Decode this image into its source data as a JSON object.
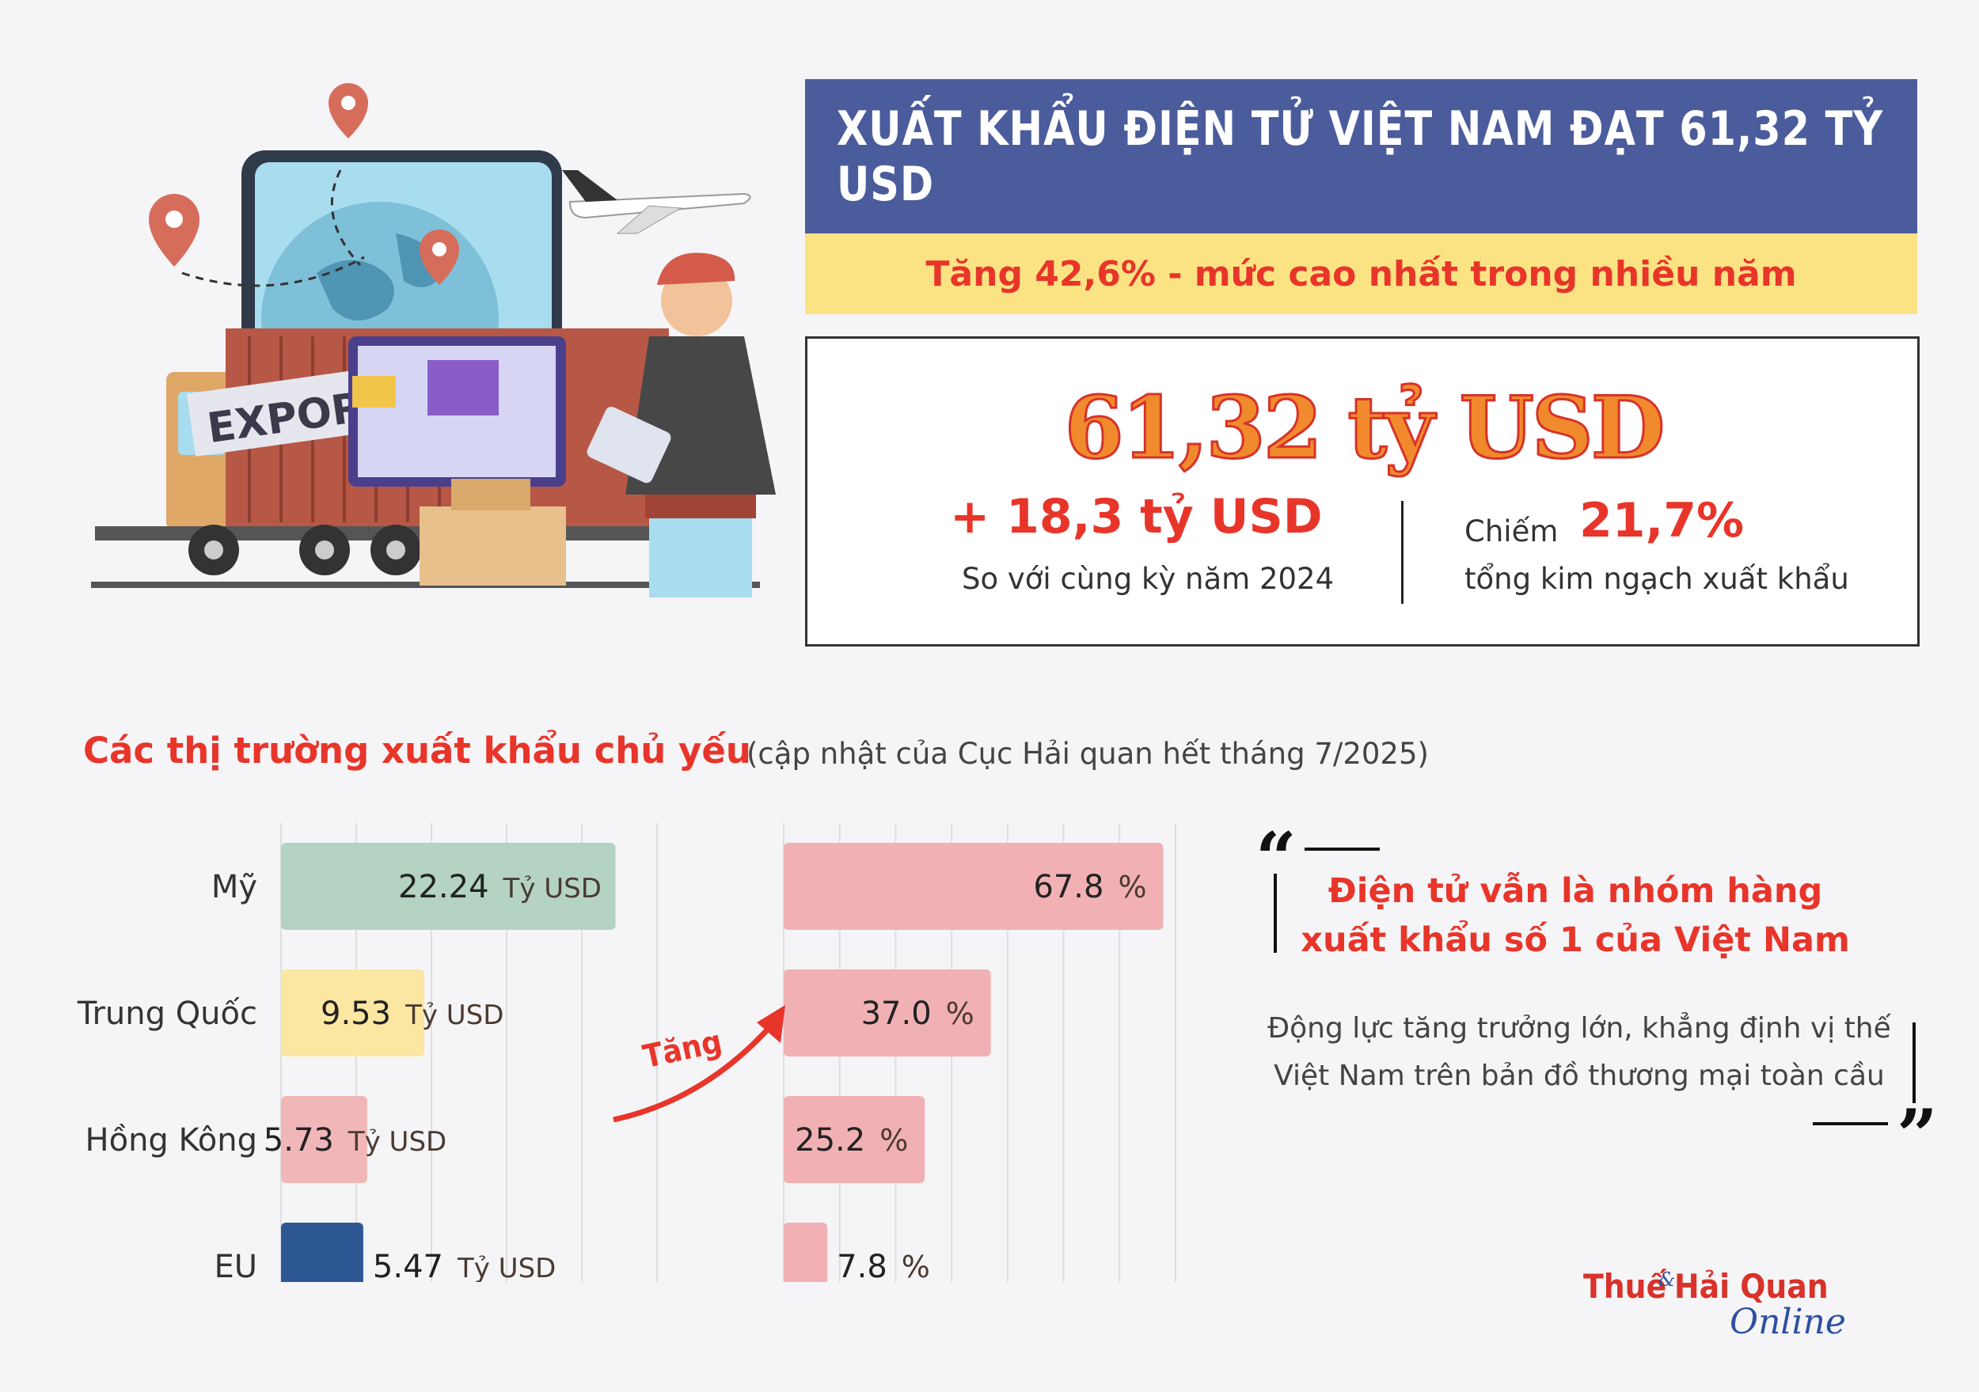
{
  "header": {
    "title": "XUẤT KHẨU ĐIỆN TỬ VIỆT NAM ĐẠT 61,32 TỶ USD",
    "subtitle": "Tăng 42,6% - mức cao nhất trong nhiều năm"
  },
  "illustration": {
    "truck_label": "EXPORT"
  },
  "summary": {
    "total": "61,32 tỷ USD",
    "growth_value": "+ 18,3 tỷ USD",
    "growth_caption": "So với cùng kỳ năm 2024",
    "share_prefix": "Chiếm",
    "share_value": "21,7%",
    "share_caption": "tổng kim ngạch xuất khẩu"
  },
  "section": {
    "title": "Các thị trường xuất khẩu chủ yếu",
    "note": "(cập nhật của Cục Hải quan hết tháng 7/2025)"
  },
  "arrow_label": "Tăng",
  "quote": {
    "open_mark": "“",
    "close_mark": "”",
    "headline_line1": "Điện tử vẫn là nhóm hàng",
    "headline_line2": "xuất khẩu số 1 của Việt Nam",
    "body_line1": "Động lực tăng trưởng lớn, khẳng định vị thế",
    "body_line2": "Việt Nam trên bản đồ thương mại toàn cầu"
  },
  "logo": {
    "part1": "Thuế",
    "amp": "&",
    "part2": "Hải Quan",
    "part3": "Online"
  },
  "colors": {
    "title_bg": "#4b5c9c",
    "subtitle_bg": "#fbe383",
    "accent_red": "#e8352a",
    "accent_orange": "#f08a2c"
  },
  "chart_data": [
    {
      "type": "bar",
      "orientation": "horizontal",
      "categories": [
        "Mỹ",
        "Trung Quốc",
        "Hồng Kông",
        "EU"
      ],
      "values": [
        22.24,
        9.53,
        5.73,
        5.47
      ],
      "value_labels": [
        "22.24",
        "9.53",
        "5.73",
        "5.47"
      ],
      "unit": "Tỷ USD",
      "bar_colors": [
        "#b4d3c3",
        "#fbe6a2",
        "#f1b6b8",
        "#2e5894"
      ],
      "xlim": [
        0,
        25
      ],
      "xticks": [
        "0",
        "5",
        "10",
        "15",
        "20",
        "25"
      ],
      "grid": true
    },
    {
      "type": "bar",
      "orientation": "horizontal",
      "categories": [
        "Mỹ",
        "Trung Quốc",
        "Hồng Kông",
        "EU"
      ],
      "values": [
        67.8,
        37.0,
        25.2,
        7.8
      ],
      "value_labels": [
        "67.8",
        "37.0",
        "25.2",
        "7.8"
      ],
      "unit": "%",
      "bar_colors": [
        "#f1b1b4",
        "#f1b1b4",
        "#f1b1b4",
        "#f1b1b4"
      ],
      "xlim": [
        0,
        70
      ],
      "xticks": [
        "0",
        "10",
        "20",
        "30",
        "40",
        "50",
        "60",
        "70"
      ],
      "grid": true
    }
  ]
}
